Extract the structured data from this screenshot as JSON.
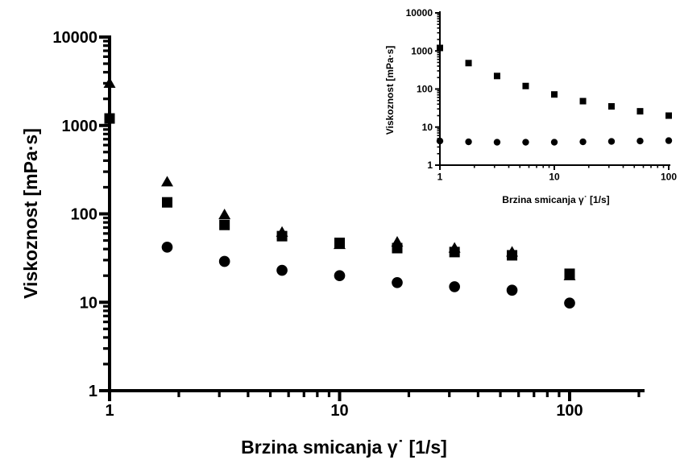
{
  "chart_data": [
    {
      "type": "scatter",
      "xlabel": "Brzina smicanja γ˙ [1/s]",
      "ylabel": "Viskoznost [mPa·s]",
      "xscale": "log",
      "yscale": "log",
      "xlim": [
        1,
        100
      ],
      "ylim": [
        1,
        10000
      ],
      "xticks": [
        "1",
        "10",
        "100"
      ],
      "yticks": [
        "1",
        "10",
        "100",
        "1000",
        "10000"
      ],
      "grid": false,
      "legend": "none",
      "x": [
        1,
        1.78,
        3.16,
        5.62,
        10,
        17.8,
        31.6,
        56.2,
        100
      ],
      "series": [
        {
          "marker": "triangle",
          "values": [
            3000,
            230,
            98,
            62,
            45,
            48,
            41,
            37,
            20
          ]
        },
        {
          "marker": "square",
          "values": [
            1200,
            135,
            75,
            56,
            47,
            41,
            37,
            34,
            21
          ]
        },
        {
          "marker": "circle",
          "values": [
            null,
            42,
            29,
            23,
            20,
            16.7,
            15,
            13.7,
            9.8
          ]
        }
      ]
    },
    {
      "type": "scatter",
      "xlabel": "Brzina smicanja γ˙ [1/s]",
      "ylabel": "Viskoznost [mPa·s]",
      "xscale": "log",
      "yscale": "log",
      "xlim": [
        1,
        100
      ],
      "ylim": [
        1,
        10000
      ],
      "xticks": [
        "1",
        "10",
        "100"
      ],
      "yticks": [
        "1",
        "10",
        "100",
        "1000",
        "10000"
      ],
      "grid": false,
      "legend": "none",
      "x": [
        1,
        1.78,
        3.16,
        5.62,
        10,
        17.8,
        31.6,
        56.2,
        100
      ],
      "series": [
        {
          "marker": "square",
          "values": [
            1200,
            480,
            220,
            120,
            72,
            48,
            35,
            26,
            20
          ]
        },
        {
          "marker": "circle",
          "values": [
            4.3,
            4.1,
            4.0,
            4.0,
            4.0,
            4.1,
            4.2,
            4.3,
            4.4
          ]
        }
      ]
    }
  ]
}
